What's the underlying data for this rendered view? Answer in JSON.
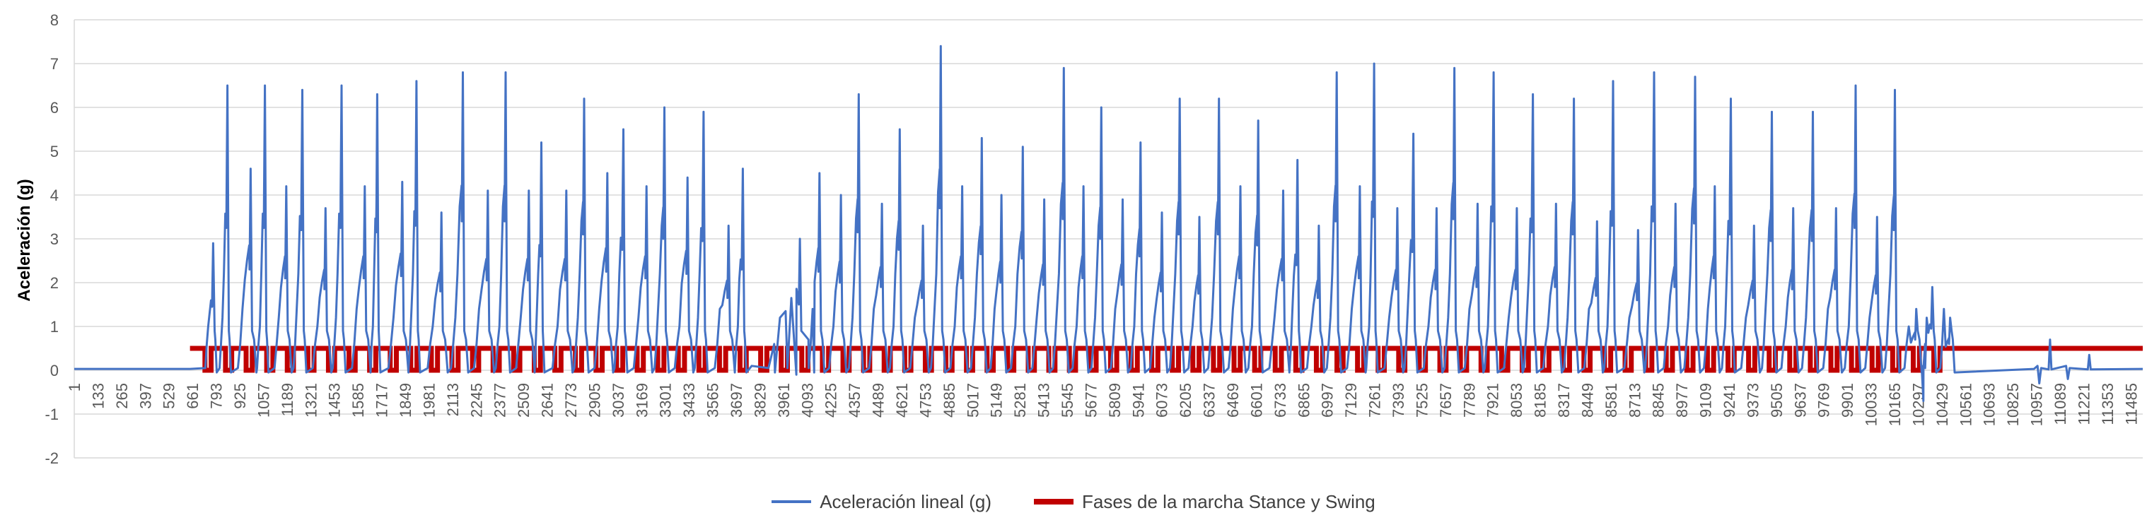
{
  "chart_data": {
    "type": "line",
    "title": "",
    "xlabel": "",
    "ylabel": "Aceleración (g)",
    "ylim": [
      -2,
      8
    ],
    "yticks": [
      -2,
      -1,
      0,
      1,
      2,
      3,
      4,
      5,
      6,
      7,
      8
    ],
    "grid": true,
    "legend_position": "bottom",
    "x_range": [
      1,
      11600
    ],
    "x_tick_labels": [
      "1",
      "133",
      "265",
      "397",
      "529",
      "661",
      "793",
      "925",
      "1057",
      "1189",
      "1321",
      "1453",
      "1585",
      "1717",
      "1849",
      "1981",
      "2113",
      "2245",
      "2377",
      "2509",
      "2641",
      "2773",
      "2905",
      "3037",
      "3169",
      "3301",
      "3433",
      "3565",
      "3697",
      "3829",
      "3961",
      "4093",
      "4225",
      "4357",
      "4489",
      "4621",
      "4753",
      "4885",
      "5017",
      "5149",
      "5281",
      "5413",
      "5545",
      "5677",
      "5809",
      "5941",
      "6073",
      "6205",
      "6337",
      "6469",
      "6601",
      "6733",
      "6865",
      "6997",
      "7129",
      "7261",
      "7393",
      "7525",
      "7657",
      "7789",
      "7921",
      "8053",
      "8185",
      "8317",
      "8449",
      "8581",
      "8713",
      "8845",
      "8977",
      "9109",
      "9241",
      "9373",
      "9505",
      "9637",
      "9769",
      "9901",
      "10033",
      "10165",
      "10297",
      "10429",
      "10561",
      "10693",
      "10825",
      "10957",
      "11089",
      "11221",
      "11353",
      "11485"
    ],
    "series": [
      {
        "name": "Aceleración lineal (g)",
        "color": "#4472C4",
        "style": "line",
        "rest_level": 0.03,
        "rest_ranges": [
          [
            1,
            650
          ],
          [
            3930,
            4050
          ],
          [
            10990,
            11600
          ]
        ],
        "stride_peaks": [
          [
            780,
            2.9
          ],
          [
            860,
            6.5
          ],
          [
            990,
            4.6
          ],
          [
            1070,
            6.5
          ],
          [
            1190,
            4.2
          ],
          [
            1280,
            6.4
          ],
          [
            1410,
            3.7
          ],
          [
            1500,
            6.5
          ],
          [
            1630,
            4.2
          ],
          [
            1700,
            6.3
          ],
          [
            1840,
            4.3
          ],
          [
            1920,
            6.6
          ],
          [
            2060,
            3.6
          ],
          [
            2180,
            6.8
          ],
          [
            2320,
            4.1
          ],
          [
            2420,
            6.8
          ],
          [
            2550,
            4.1
          ],
          [
            2620,
            5.2
          ],
          [
            2760,
            4.1
          ],
          [
            2860,
            6.2
          ],
          [
            2990,
            4.5
          ],
          [
            3080,
            5.5
          ],
          [
            3210,
            4.2
          ],
          [
            3310,
            6.0
          ],
          [
            3440,
            4.4
          ],
          [
            3530,
            5.9
          ],
          [
            3670,
            3.3
          ],
          [
            3750,
            4.6
          ],
          [
            4070,
            3.0
          ],
          [
            4180,
            4.5
          ],
          [
            4300,
            4.0
          ],
          [
            4400,
            6.3
          ],
          [
            4530,
            3.8
          ],
          [
            4630,
            5.5
          ],
          [
            4760,
            3.3
          ],
          [
            4860,
            7.4
          ],
          [
            4980,
            4.2
          ],
          [
            5090,
            5.3
          ],
          [
            5200,
            4.0
          ],
          [
            5320,
            5.1
          ],
          [
            5440,
            3.9
          ],
          [
            5550,
            6.9
          ],
          [
            5660,
            4.2
          ],
          [
            5760,
            6.0
          ],
          [
            5880,
            3.9
          ],
          [
            5980,
            5.2
          ],
          [
            6100,
            3.6
          ],
          [
            6200,
            6.2
          ],
          [
            6310,
            3.5
          ],
          [
            6420,
            6.2
          ],
          [
            6540,
            4.2
          ],
          [
            6640,
            5.7
          ],
          [
            6780,
            4.1
          ],
          [
            6860,
            4.8
          ],
          [
            6980,
            3.3
          ],
          [
            7080,
            6.8
          ],
          [
            7210,
            4.2
          ],
          [
            7290,
            7.0
          ],
          [
            7420,
            3.7
          ],
          [
            7510,
            5.4
          ],
          [
            7640,
            3.7
          ],
          [
            7740,
            6.9
          ],
          [
            7870,
            3.8
          ],
          [
            7960,
            6.8
          ],
          [
            8090,
            3.7
          ],
          [
            8180,
            6.3
          ],
          [
            8310,
            3.8
          ],
          [
            8410,
            6.2
          ],
          [
            8540,
            3.4
          ],
          [
            8630,
            6.6
          ],
          [
            8770,
            3.2
          ],
          [
            8860,
            6.8
          ],
          [
            8980,
            3.8
          ],
          [
            9090,
            6.7
          ],
          [
            9200,
            4.2
          ],
          [
            9290,
            6.2
          ],
          [
            9420,
            3.3
          ],
          [
            9520,
            5.9
          ],
          [
            9640,
            3.7
          ],
          [
            9750,
            5.9
          ],
          [
            9880,
            3.7
          ],
          [
            9990,
            6.5
          ],
          [
            10110,
            3.5
          ],
          [
            10210,
            6.4
          ],
          [
            10330,
            1.4
          ],
          [
            10420,
            1.9
          ],
          [
            10520,
            1.2
          ]
        ],
        "dips": [
          [
            10370,
            -0.7
          ],
          [
            11020,
            -0.3
          ],
          [
            11180,
            -0.2
          ]
        ],
        "spikes": [
          [
            11080,
            0.7
          ],
          [
            11300,
            0.35
          ]
        ]
      },
      {
        "name": "Fases de la marcha Stance y Swing",
        "color": "#C00000",
        "style": "square-wave",
        "high": 0.5,
        "low": 0.0,
        "x_range": [
          650,
          11600
        ],
        "pulse_count": 85,
        "active_range": [
          720,
          10530
        ]
      }
    ]
  },
  "legend": {
    "accel_label": "Aceleración lineal (g)",
    "phase_label": "Fases de la marcha Stance y Swing",
    "accel_color": "#4472C4",
    "phase_color": "#C00000"
  }
}
